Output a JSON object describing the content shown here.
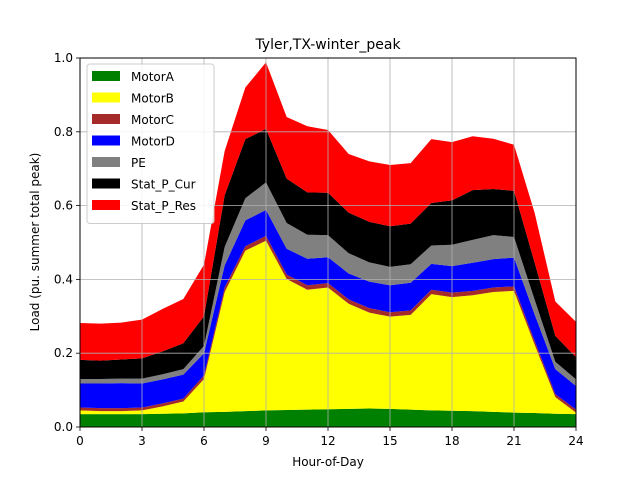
{
  "chart_data": {
    "type": "area",
    "title": "Tyler,TX-winter_peak",
    "xlabel": "Hour-of-Day",
    "ylabel": "Load (pu. summer total peak)",
    "xlim": [
      0,
      24
    ],
    "ylim": [
      0,
      1.0
    ],
    "xticks": [
      0,
      3,
      6,
      9,
      12,
      15,
      18,
      21,
      24
    ],
    "yticks": [
      0.0,
      0.2,
      0.4,
      0.6,
      0.8,
      1.0
    ],
    "xtick_labels": [
      "0",
      "3",
      "6",
      "9",
      "12",
      "15",
      "18",
      "21",
      "24"
    ],
    "ytick_labels": [
      "0.0",
      "0.2",
      "0.4",
      "0.6",
      "0.8",
      "1.0"
    ],
    "grid": true,
    "legend_position": "upper-left",
    "stacked": true,
    "x": [
      0,
      1,
      2,
      3,
      4,
      5,
      6,
      7,
      8,
      9,
      10,
      11,
      12,
      13,
      14,
      15,
      16,
      17,
      18,
      19,
      20,
      21,
      22,
      23,
      24
    ],
    "series": [
      {
        "name": "MotorA",
        "color": "#008000",
        "values": [
          0.035,
          0.035,
          0.035,
          0.035,
          0.036,
          0.037,
          0.04,
          0.041,
          0.043,
          0.045,
          0.046,
          0.047,
          0.048,
          0.049,
          0.05,
          0.049,
          0.047,
          0.045,
          0.044,
          0.043,
          0.041,
          0.039,
          0.038,
          0.036,
          0.035
        ]
      },
      {
        "name": "MotorB",
        "color": "#ffff00",
        "values": [
          0.01,
          0.008,
          0.008,
          0.01,
          0.02,
          0.032,
          0.09,
          0.325,
          0.435,
          0.46,
          0.355,
          0.325,
          0.33,
          0.285,
          0.26,
          0.25,
          0.257,
          0.315,
          0.308,
          0.314,
          0.325,
          0.33,
          0.185,
          0.045,
          0.004
        ]
      },
      {
        "name": "MotorC",
        "color": "#a52a2a",
        "values": [
          0.008,
          0.008,
          0.008,
          0.008,
          0.008,
          0.008,
          0.01,
          0.012,
          0.012,
          0.013,
          0.012,
          0.012,
          0.012,
          0.012,
          0.012,
          0.012,
          0.012,
          0.012,
          0.012,
          0.012,
          0.012,
          0.012,
          0.01,
          0.008,
          0.008
        ]
      },
      {
        "name": "MotorD",
        "color": "#0000ff",
        "values": [
          0.065,
          0.067,
          0.068,
          0.065,
          0.065,
          0.065,
          0.06,
          0.06,
          0.07,
          0.07,
          0.07,
          0.072,
          0.07,
          0.07,
          0.072,
          0.073,
          0.075,
          0.07,
          0.072,
          0.076,
          0.077,
          0.078,
          0.072,
          0.068,
          0.064
        ]
      },
      {
        "name": "PE",
        "color": "#808080",
        "values": [
          0.012,
          0.012,
          0.012,
          0.013,
          0.014,
          0.015,
          0.02,
          0.05,
          0.06,
          0.075,
          0.07,
          0.065,
          0.06,
          0.055,
          0.052,
          0.05,
          0.05,
          0.05,
          0.058,
          0.062,
          0.065,
          0.056,
          0.04,
          0.02,
          0.018
        ]
      },
      {
        "name": "Stat_P_Cur",
        "color": "#000000",
        "values": [
          0.052,
          0.05,
          0.052,
          0.055,
          0.062,
          0.07,
          0.08,
          0.14,
          0.16,
          0.145,
          0.12,
          0.115,
          0.115,
          0.11,
          0.11,
          0.11,
          0.11,
          0.115,
          0.12,
          0.135,
          0.125,
          0.125,
          0.1,
          0.07,
          0.06
        ]
      },
      {
        "name": "Stat_P_Res",
        "color": "#ff0000",
        "values": [
          0.1,
          0.1,
          0.1,
          0.105,
          0.115,
          0.12,
          0.14,
          0.12,
          0.14,
          0.18,
          0.167,
          0.179,
          0.17,
          0.159,
          0.164,
          0.166,
          0.164,
          0.173,
          0.158,
          0.146,
          0.136,
          0.125,
          0.135,
          0.093,
          0.096
        ]
      }
    ]
  }
}
